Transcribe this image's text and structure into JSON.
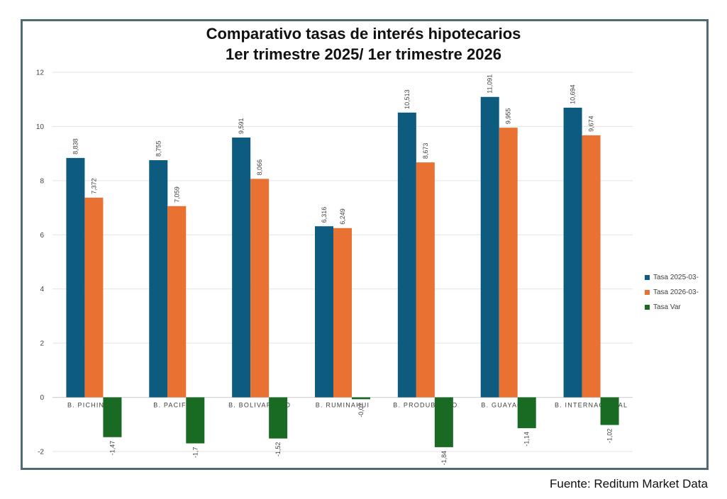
{
  "chart_data": {
    "type": "bar",
    "title_lines": [
      "Comparativo tasas de interés hipotecarios",
      "1er trimestre 2025/ 1er trimestre 2026"
    ],
    "categories": [
      "B. PICHINCHA",
      "B. PACIFICO",
      "B. BOLIVARIANO",
      "B. RUMINAHUI",
      "B. PRODUBANCO",
      "B. GUAYAQUIL",
      "B. INTERNACIONAL"
    ],
    "series": [
      {
        "name": "Tasa 2025-03-",
        "color": "#0e5b80",
        "values": [
          8.838,
          8.755,
          9.591,
          6.316,
          10.513,
          11.091,
          10.694
        ],
        "labels": [
          "8,838",
          "8,755",
          "9,591",
          "6,316",
          "10,513",
          "11,091",
          "10,694"
        ]
      },
      {
        "name": "Tasa 2026-03-",
        "color": "#e97132",
        "values": [
          7.372,
          7.059,
          8.066,
          6.249,
          8.673,
          9.955,
          9.674
        ],
        "labels": [
          "7,372",
          "7,059",
          "8,066",
          "6,249",
          "8,673",
          "9,955",
          "9,674"
        ]
      },
      {
        "name": "Tasa Var",
        "color": "#196b24",
        "values": [
          -1.47,
          -1.7,
          -1.52,
          -0.07,
          -1.84,
          -1.14,
          -1.02
        ],
        "labels": [
          "-1,47",
          "-1,7",
          "-1,52",
          "-0,07",
          "-1,84",
          "-1,14",
          "-1,02"
        ]
      }
    ],
    "ylim": [
      -2,
      12
    ],
    "yticks": [
      -2,
      0,
      2,
      4,
      6,
      8,
      10,
      12
    ],
    "grid": true,
    "legend_position": "right"
  },
  "source_text": "Fuente: Reditum Market Data"
}
